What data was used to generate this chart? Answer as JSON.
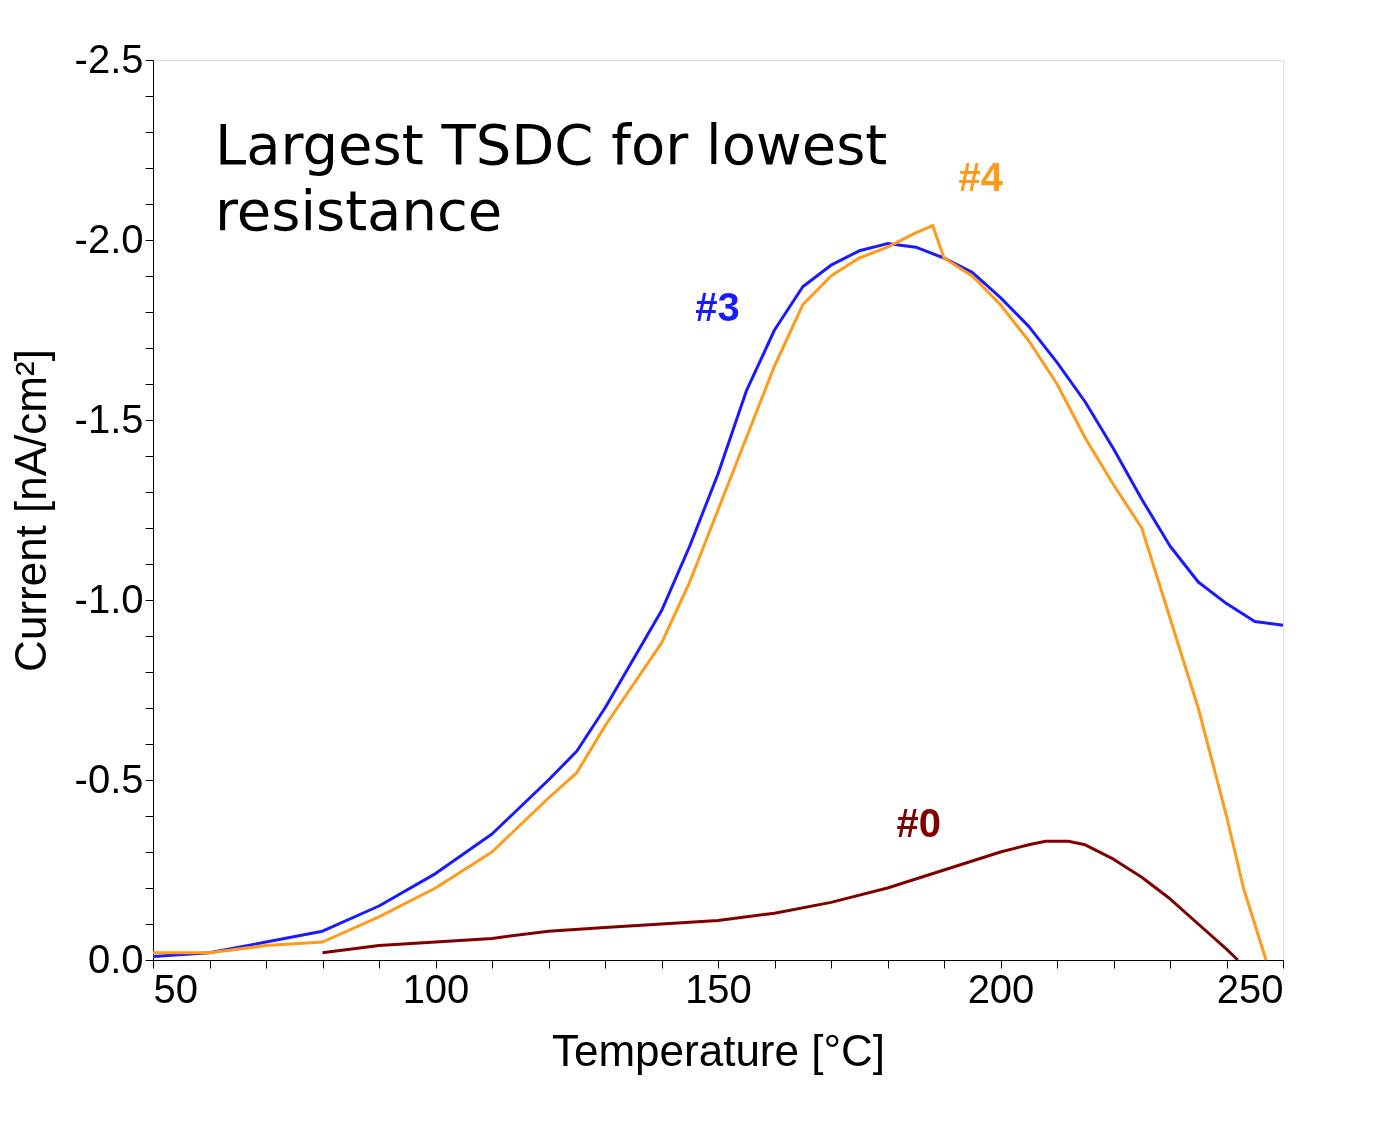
{
  "chart_data": {
    "type": "line",
    "xlabel": "Temperature [°C]",
    "ylabel": "Current [nA/cm²]",
    "annotations": [
      "Largest TSDC for lowest resistance"
    ],
    "xlim": [
      50,
      250
    ],
    "ylim": [
      0,
      -2.5
    ],
    "xticks": [
      50,
      {
        "value": 60,
        "label": null
      },
      {
        "value": 70,
        "label": null
      },
      {
        "value": 80,
        "label": null
      },
      {
        "value": 90,
        "label": null
      },
      100,
      {
        "value": 110,
        "label": null
      },
      {
        "value": 120,
        "label": null
      },
      {
        "value": 130,
        "label": null
      },
      {
        "value": 140,
        "label": null
      },
      150,
      {
        "value": 160,
        "label": null
      },
      {
        "value": 170,
        "label": null
      },
      {
        "value": 180,
        "label": null
      },
      {
        "value": 190,
        "label": null
      },
      200,
      {
        "value": 210,
        "label": null
      },
      {
        "value": 220,
        "label": null
      },
      {
        "value": 230,
        "label": null
      },
      {
        "value": 240,
        "label": null
      },
      250
    ],
    "yticks": [
      {
        "value": 0,
        "label": "0.0"
      },
      {
        "value": -0.1,
        "label": null
      },
      {
        "value": -0.2,
        "label": null
      },
      {
        "value": -0.3,
        "label": null
      },
      {
        "value": -0.4,
        "label": null
      },
      -0.5,
      {
        "value": -0.6,
        "label": null
      },
      {
        "value": -0.7,
        "label": null
      },
      {
        "value": -0.8,
        "label": null
      },
      {
        "value": -0.9,
        "label": null
      },
      {
        "value": -1,
        "label": "-1.0"
      },
      {
        "value": -1.1,
        "label": null
      },
      {
        "value": -1.2,
        "label": null
      },
      {
        "value": -1.3,
        "label": null
      },
      {
        "value": -1.4,
        "label": null
      },
      -1.5,
      {
        "value": -1.6,
        "label": null
      },
      {
        "value": -1.7,
        "label": null
      },
      {
        "value": -1.8,
        "label": null
      },
      {
        "value": -1.9,
        "label": null
      },
      {
        "value": -2,
        "label": "-2.0"
      },
      {
        "value": -2.1,
        "label": null
      },
      {
        "value": -2.2,
        "label": null
      },
      {
        "value": -2.3,
        "label": null
      },
      {
        "value": -2.4,
        "label": null
      },
      -2.5
    ],
    "grid": false,
    "line_style": "solid",
    "marker": "none",
    "series": [
      {
        "name": "#3",
        "color": "#1a1aff",
        "x": [
          50,
          60,
          70,
          80,
          90,
          100,
          110,
          120,
          125,
          130,
          140,
          145,
          150,
          155,
          160,
          165,
          170,
          175,
          180,
          185,
          190,
          195,
          200,
          205,
          210,
          215,
          220,
          225,
          230,
          235,
          240,
          245,
          250
        ],
        "values": [
          -0.01,
          -0.02,
          -0.05,
          -0.08,
          -0.15,
          -0.24,
          -0.35,
          -0.5,
          -0.58,
          -0.7,
          -0.97,
          -1.15,
          -1.35,
          -1.58,
          -1.75,
          -1.87,
          -1.93,
          -1.97,
          -1.99,
          -1.98,
          -1.95,
          -1.91,
          -1.84,
          -1.76,
          -1.66,
          -1.55,
          -1.42,
          -1.28,
          -1.15,
          -1.05,
          -0.99,
          -0.94,
          -0.93
        ]
      },
      {
        "name": "#4",
        "color": "#ff9a1a",
        "x": [
          50,
          60,
          70,
          80,
          90,
          100,
          110,
          120,
          125,
          130,
          140,
          145,
          150,
          155,
          160,
          165,
          170,
          175,
          180,
          185,
          188,
          190,
          195,
          200,
          205,
          210,
          215,
          220,
          225,
          230,
          235,
          240,
          243,
          245,
          247
        ],
        "values": [
          -0.02,
          -0.02,
          -0.04,
          -0.05,
          -0.12,
          -0.2,
          -0.3,
          -0.45,
          -0.52,
          -0.65,
          -0.88,
          -1.05,
          -1.25,
          -1.45,
          -1.65,
          -1.82,
          -1.9,
          -1.95,
          -1.98,
          -2.02,
          -2.04,
          -1.95,
          -1.9,
          -1.82,
          -1.72,
          -1.6,
          -1.45,
          -1.32,
          -1.2,
          -0.95,
          -0.7,
          -0.4,
          -0.2,
          -0.1,
          0.0
        ]
      },
      {
        "name": "#0",
        "color": "#800000",
        "x": [
          80,
          90,
          100,
          110,
          120,
          130,
          140,
          150,
          160,
          170,
          180,
          190,
          200,
          205,
          208,
          212,
          215,
          220,
          225,
          230,
          235,
          240,
          242
        ],
        "values": [
          -0.02,
          -0.04,
          -0.05,
          -0.06,
          -0.08,
          -0.09,
          -0.1,
          -0.11,
          -0.13,
          -0.16,
          -0.2,
          -0.25,
          -0.3,
          -0.32,
          -0.33,
          -0.33,
          -0.32,
          -0.28,
          -0.23,
          -0.17,
          -0.1,
          -0.03,
          0.0
        ]
      }
    ]
  }
}
